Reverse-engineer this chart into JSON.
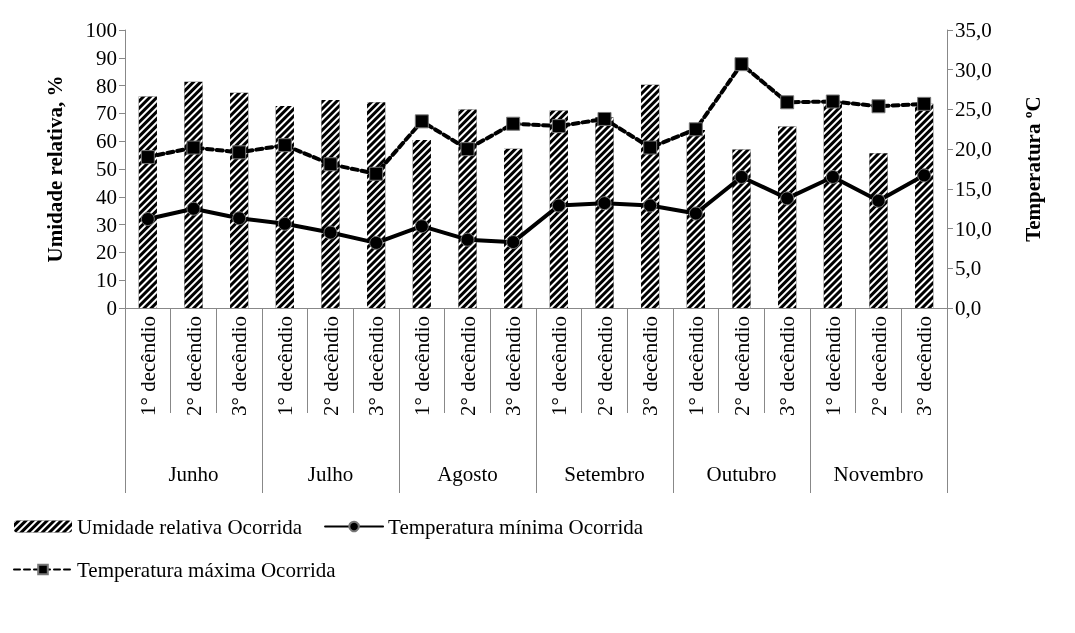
{
  "chart_data": {
    "type": "bar",
    "ylabel": "Umidade relativa, %",
    "y2label": "Temperatura ºC",
    "categories": [
      "1° decêndio",
      "2° decêndio",
      "3° decêndio",
      "1° decêndio",
      "2° decêndio",
      "3° decêndio",
      "1° decêndio",
      "2° decêndio",
      "3° decêndio",
      "1° decêndio",
      "2° decêndio",
      "3° decêndio",
      "1° decêndio",
      "2° decêndio",
      "3° decêndio",
      "1° decêndio",
      "2° decêndio",
      "3° decêndio"
    ],
    "annotations": [
      "Junho",
      "Julho",
      "Agosto",
      "Setembro",
      "Outubro",
      "Novembro"
    ],
    "series": [
      {
        "name": "Umidade relativa Ocorrida",
        "color": "#000000",
        "values": [
          76.1,
          81.4,
          77.4,
          72.7,
          74.8,
          74.0,
          60.4,
          71.4,
          57.3,
          71.0,
          68.6,
          80.3,
          64.0,
          57.0,
          65.3,
          73.5,
          55.7,
          73.5
        ]
      },
      {
        "name": "Temperatura mínima Ocorrida",
        "type": "line",
        "axis": "y2",
        "color": "#000000",
        "marker": "circle",
        "line_style": "solid",
        "values": [
          11.2,
          12.5,
          11.3,
          10.6,
          9.5,
          8.2,
          10.3,
          8.6,
          8.3,
          12.9,
          13.2,
          12.9,
          11.9,
          16.5,
          13.8,
          16.5,
          13.5,
          16.7
        ]
      },
      {
        "name": "Temperatura máxima Ocorrida",
        "type": "line",
        "axis": "y2",
        "color": "#000000",
        "marker": "square",
        "line_style": "dashed",
        "values": [
          19.0,
          20.2,
          19.6,
          20.5,
          18.1,
          16.9,
          23.5,
          20.0,
          23.2,
          22.9,
          23.8,
          20.2,
          22.5,
          30.7,
          25.9,
          26.0,
          25.4,
          25.7
        ]
      }
    ],
    "ylim": [
      0,
      100
    ],
    "yticks": [
      0,
      10,
      20,
      30,
      40,
      50,
      60,
      70,
      80,
      90,
      100
    ],
    "y2lim": [
      0,
      35
    ],
    "y2ticks": [
      {
        "value": 0,
        "label": "0,0"
      },
      {
        "value": 5,
        "label": "5,0"
      },
      {
        "value": 10,
        "label": "10,0"
      },
      {
        "value": 15,
        "label": "15,0"
      },
      {
        "value": 20,
        "label": "20,0"
      },
      {
        "value": 25,
        "label": "25,0"
      },
      {
        "value": 30,
        "label": "30,0"
      },
      {
        "value": 35,
        "label": "35,0"
      }
    ],
    "grid": false,
    "legend": "bottom"
  }
}
